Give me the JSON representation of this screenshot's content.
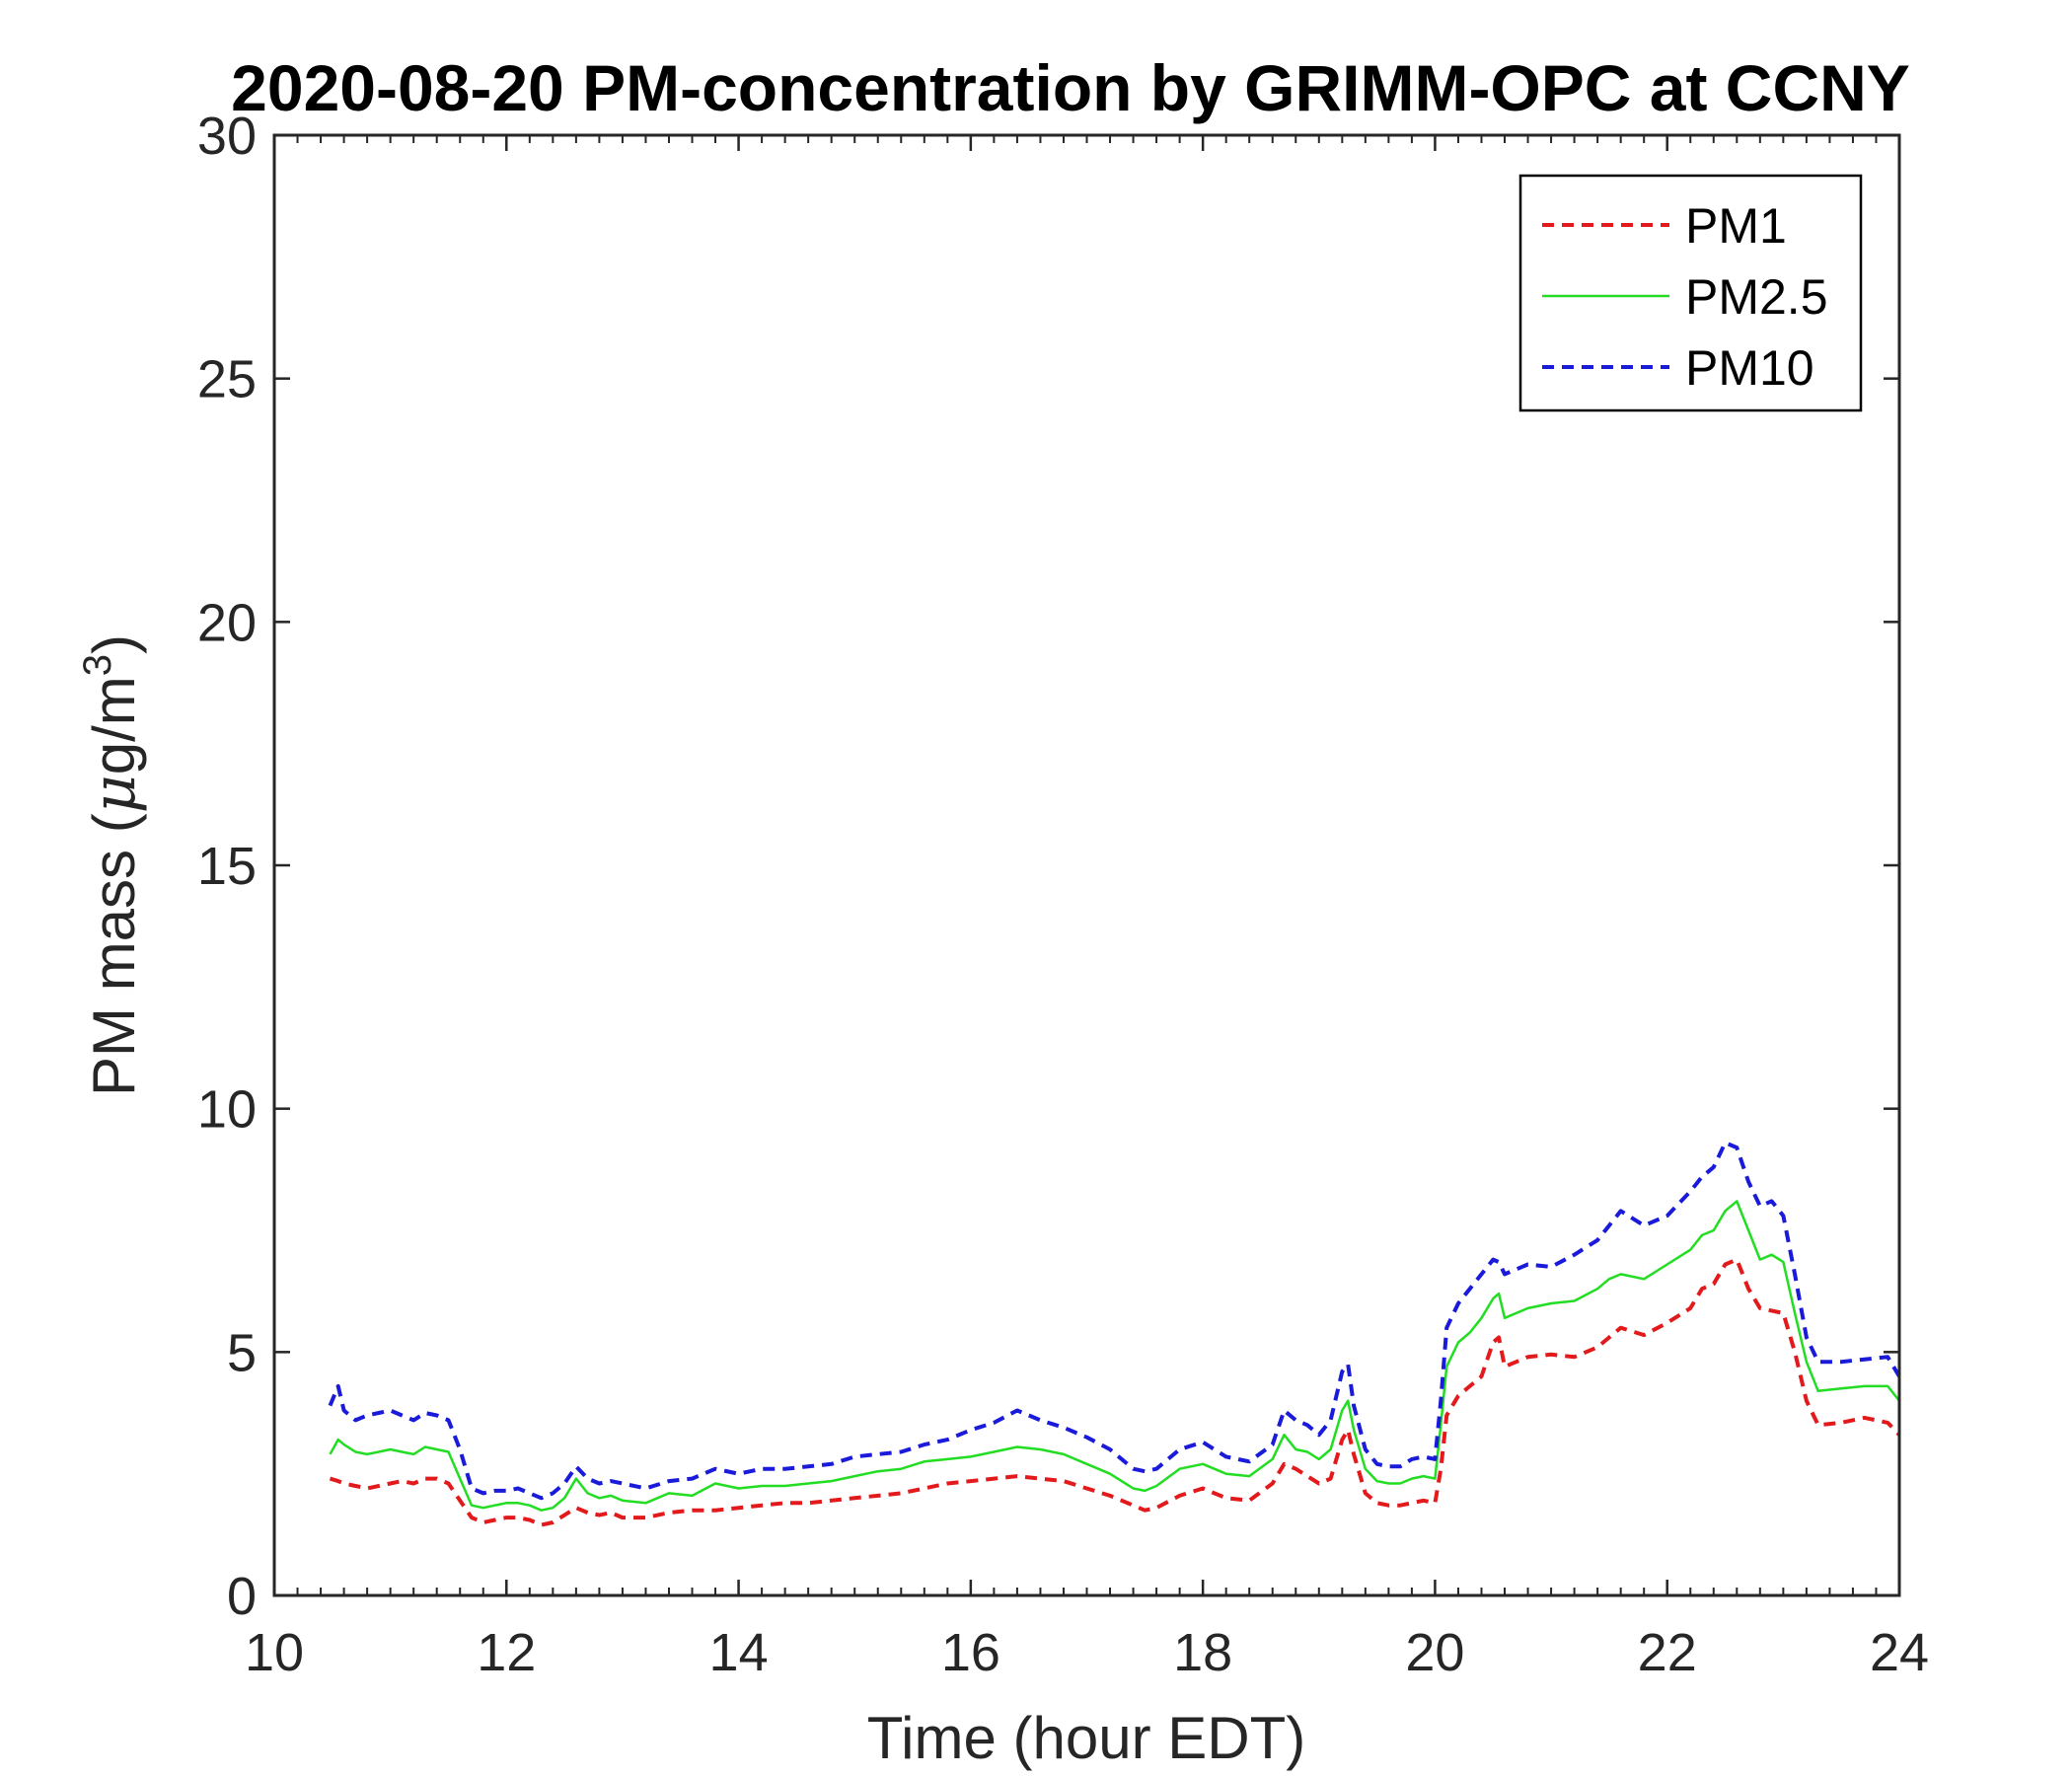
{
  "chart_data": {
    "type": "line",
    "title": "2020-08-20 PM-concentration by GRIMM-OPC at CCNY",
    "xlabel": "Time (hour EDT)",
    "ylabel_main": "PM mass (",
    "ylabel_mu": "μ",
    "ylabel_unit": "g/m",
    "ylabel_sup": "3",
    "ylabel_close": ")",
    "xlim": [
      10,
      24
    ],
    "ylim": [
      0,
      30
    ],
    "x_ticks": [
      10,
      12,
      14,
      16,
      18,
      20,
      22,
      24
    ],
    "y_ticks": [
      0,
      5,
      10,
      15,
      20,
      25,
      30
    ],
    "legend_position": "top-right",
    "series": [
      {
        "name": "PM1",
        "color": "#e31a1c",
        "style": "dashed",
        "x": [
          10.48,
          10.55,
          10.6,
          10.7,
          10.8,
          10.9,
          11.0,
          11.1,
          11.2,
          11.3,
          11.4,
          11.5,
          11.6,
          11.7,
          11.8,
          11.9,
          12.0,
          12.1,
          12.2,
          12.3,
          12.4,
          12.5,
          12.6,
          12.7,
          12.8,
          12.9,
          13.0,
          13.2,
          13.4,
          13.6,
          13.8,
          14.0,
          14.2,
          14.4,
          14.6,
          14.8,
          15.0,
          15.2,
          15.4,
          15.6,
          15.8,
          16.0,
          16.2,
          16.4,
          16.6,
          16.8,
          17.0,
          17.2,
          17.4,
          17.5,
          17.6,
          17.8,
          18.0,
          18.2,
          18.4,
          18.6,
          18.7,
          18.8,
          18.9,
          19.0,
          19.1,
          19.2,
          19.25,
          19.3,
          19.4,
          19.5,
          19.6,
          19.7,
          19.8,
          19.9,
          20.0,
          20.05,
          20.1,
          20.2,
          20.3,
          20.4,
          20.5,
          20.55,
          20.6,
          20.8,
          21.0,
          21.2,
          21.4,
          21.5,
          21.6,
          21.8,
          22.0,
          22.2,
          22.3,
          22.4,
          22.5,
          22.6,
          22.7,
          22.8,
          22.9,
          23.0,
          23.1,
          23.2,
          23.3,
          23.5,
          23.7,
          23.9,
          24.0
        ],
        "y": [
          2.4,
          2.35,
          2.3,
          2.25,
          2.2,
          2.25,
          2.3,
          2.35,
          2.3,
          2.4,
          2.4,
          2.3,
          1.95,
          1.6,
          1.5,
          1.55,
          1.6,
          1.6,
          1.55,
          1.45,
          1.5,
          1.65,
          1.8,
          1.7,
          1.65,
          1.7,
          1.6,
          1.6,
          1.7,
          1.75,
          1.75,
          1.8,
          1.85,
          1.9,
          1.9,
          1.95,
          2.0,
          2.05,
          2.1,
          2.2,
          2.3,
          2.35,
          2.4,
          2.45,
          2.4,
          2.35,
          2.2,
          2.05,
          1.85,
          1.75,
          1.8,
          2.05,
          2.2,
          2.0,
          1.95,
          2.3,
          2.7,
          2.6,
          2.45,
          2.3,
          2.4,
          3.2,
          3.4,
          2.9,
          2.1,
          1.9,
          1.85,
          1.85,
          1.9,
          1.95,
          1.9,
          2.6,
          3.7,
          4.1,
          4.3,
          4.5,
          5.2,
          5.3,
          4.7,
          4.9,
          4.95,
          4.9,
          5.1,
          5.3,
          5.5,
          5.35,
          5.6,
          5.9,
          6.3,
          6.4,
          6.8,
          6.9,
          6.3,
          5.9,
          5.85,
          5.8,
          5.0,
          4.0,
          3.5,
          3.55,
          3.65,
          3.55,
          3.3
        ]
      },
      {
        "name": "PM2.5",
        "color": "#22dd22",
        "style": "solid",
        "x": [
          10.48,
          10.55,
          10.6,
          10.7,
          10.8,
          10.9,
          11.0,
          11.1,
          11.2,
          11.3,
          11.4,
          11.5,
          11.6,
          11.7,
          11.8,
          11.9,
          12.0,
          12.1,
          12.2,
          12.3,
          12.4,
          12.5,
          12.6,
          12.7,
          12.8,
          12.9,
          13.0,
          13.2,
          13.4,
          13.6,
          13.8,
          14.0,
          14.2,
          14.4,
          14.6,
          14.8,
          15.0,
          15.2,
          15.4,
          15.6,
          15.8,
          16.0,
          16.2,
          16.4,
          16.6,
          16.8,
          17.0,
          17.2,
          17.4,
          17.5,
          17.6,
          17.8,
          18.0,
          18.2,
          18.4,
          18.6,
          18.7,
          18.8,
          18.9,
          19.0,
          19.1,
          19.2,
          19.25,
          19.3,
          19.4,
          19.5,
          19.6,
          19.7,
          19.8,
          19.9,
          20.0,
          20.05,
          20.1,
          20.2,
          20.3,
          20.4,
          20.5,
          20.55,
          20.6,
          20.8,
          21.0,
          21.2,
          21.4,
          21.5,
          21.6,
          21.8,
          22.0,
          22.2,
          22.3,
          22.4,
          22.5,
          22.6,
          22.7,
          22.8,
          22.9,
          23.0,
          23.1,
          23.2,
          23.3,
          23.5,
          23.7,
          23.9,
          24.0
        ],
        "y": [
          2.9,
          3.2,
          3.1,
          2.95,
          2.9,
          2.95,
          3.0,
          2.95,
          2.9,
          3.05,
          3.0,
          2.95,
          2.4,
          1.85,
          1.8,
          1.85,
          1.9,
          1.9,
          1.85,
          1.75,
          1.8,
          2.0,
          2.4,
          2.1,
          2.0,
          2.05,
          1.95,
          1.9,
          2.1,
          2.05,
          2.3,
          2.2,
          2.25,
          2.25,
          2.3,
          2.35,
          2.45,
          2.55,
          2.6,
          2.75,
          2.8,
          2.85,
          2.95,
          3.05,
          3.0,
          2.9,
          2.7,
          2.5,
          2.2,
          2.15,
          2.25,
          2.6,
          2.7,
          2.5,
          2.45,
          2.8,
          3.3,
          3.0,
          2.95,
          2.8,
          3.0,
          3.8,
          4.0,
          3.4,
          2.6,
          2.35,
          2.3,
          2.3,
          2.4,
          2.45,
          2.4,
          3.5,
          4.7,
          5.2,
          5.4,
          5.7,
          6.1,
          6.2,
          5.7,
          5.9,
          6.0,
          6.05,
          6.3,
          6.5,
          6.6,
          6.5,
          6.8,
          7.1,
          7.4,
          7.5,
          7.9,
          8.1,
          7.5,
          6.9,
          7.0,
          6.85,
          5.8,
          4.8,
          4.2,
          4.25,
          4.3,
          4.3,
          4.0
        ]
      },
      {
        "name": "PM10",
        "color": "#1a1adb",
        "style": "dashed",
        "x": [
          10.48,
          10.55,
          10.6,
          10.7,
          10.8,
          10.9,
          11.0,
          11.1,
          11.2,
          11.3,
          11.4,
          11.5,
          11.6,
          11.7,
          11.8,
          11.9,
          12.0,
          12.1,
          12.2,
          12.3,
          12.4,
          12.5,
          12.6,
          12.7,
          12.8,
          12.9,
          13.0,
          13.2,
          13.4,
          13.6,
          13.8,
          14.0,
          14.2,
          14.4,
          14.6,
          14.8,
          15.0,
          15.2,
          15.4,
          15.6,
          15.8,
          16.0,
          16.2,
          16.4,
          16.6,
          16.8,
          17.0,
          17.2,
          17.4,
          17.5,
          17.6,
          17.8,
          18.0,
          18.2,
          18.4,
          18.6,
          18.7,
          18.8,
          18.9,
          19.0,
          19.1,
          19.2,
          19.25,
          19.3,
          19.4,
          19.5,
          19.6,
          19.7,
          19.8,
          19.9,
          20.0,
          20.05,
          20.1,
          20.2,
          20.3,
          20.4,
          20.5,
          20.55,
          20.6,
          20.8,
          21.0,
          21.2,
          21.4,
          21.5,
          21.6,
          21.8,
          22.0,
          22.2,
          22.3,
          22.4,
          22.5,
          22.6,
          22.7,
          22.8,
          22.9,
          23.0,
          23.1,
          23.2,
          23.3,
          23.5,
          23.7,
          23.9,
          24.0
        ],
        "y": [
          3.9,
          4.3,
          3.8,
          3.6,
          3.7,
          3.75,
          3.8,
          3.7,
          3.6,
          3.75,
          3.7,
          3.6,
          3.0,
          2.2,
          2.1,
          2.15,
          2.15,
          2.2,
          2.1,
          2.0,
          2.1,
          2.3,
          2.65,
          2.4,
          2.3,
          2.35,
          2.3,
          2.2,
          2.35,
          2.4,
          2.6,
          2.5,
          2.6,
          2.6,
          2.65,
          2.7,
          2.85,
          2.9,
          2.95,
          3.1,
          3.2,
          3.4,
          3.55,
          3.8,
          3.6,
          3.45,
          3.25,
          3.0,
          2.6,
          2.55,
          2.6,
          3.0,
          3.15,
          2.85,
          2.75,
          3.1,
          3.8,
          3.6,
          3.5,
          3.3,
          3.6,
          4.6,
          4.75,
          3.9,
          3.0,
          2.7,
          2.65,
          2.65,
          2.8,
          2.85,
          2.8,
          4.0,
          5.5,
          6.0,
          6.3,
          6.6,
          6.9,
          6.85,
          6.6,
          6.8,
          6.75,
          7.0,
          7.3,
          7.6,
          7.9,
          7.6,
          7.8,
          8.3,
          8.6,
          8.8,
          9.3,
          9.2,
          8.5,
          8.0,
          8.1,
          7.8,
          6.6,
          5.3,
          4.8,
          4.8,
          4.85,
          4.9,
          4.5
        ]
      }
    ]
  }
}
